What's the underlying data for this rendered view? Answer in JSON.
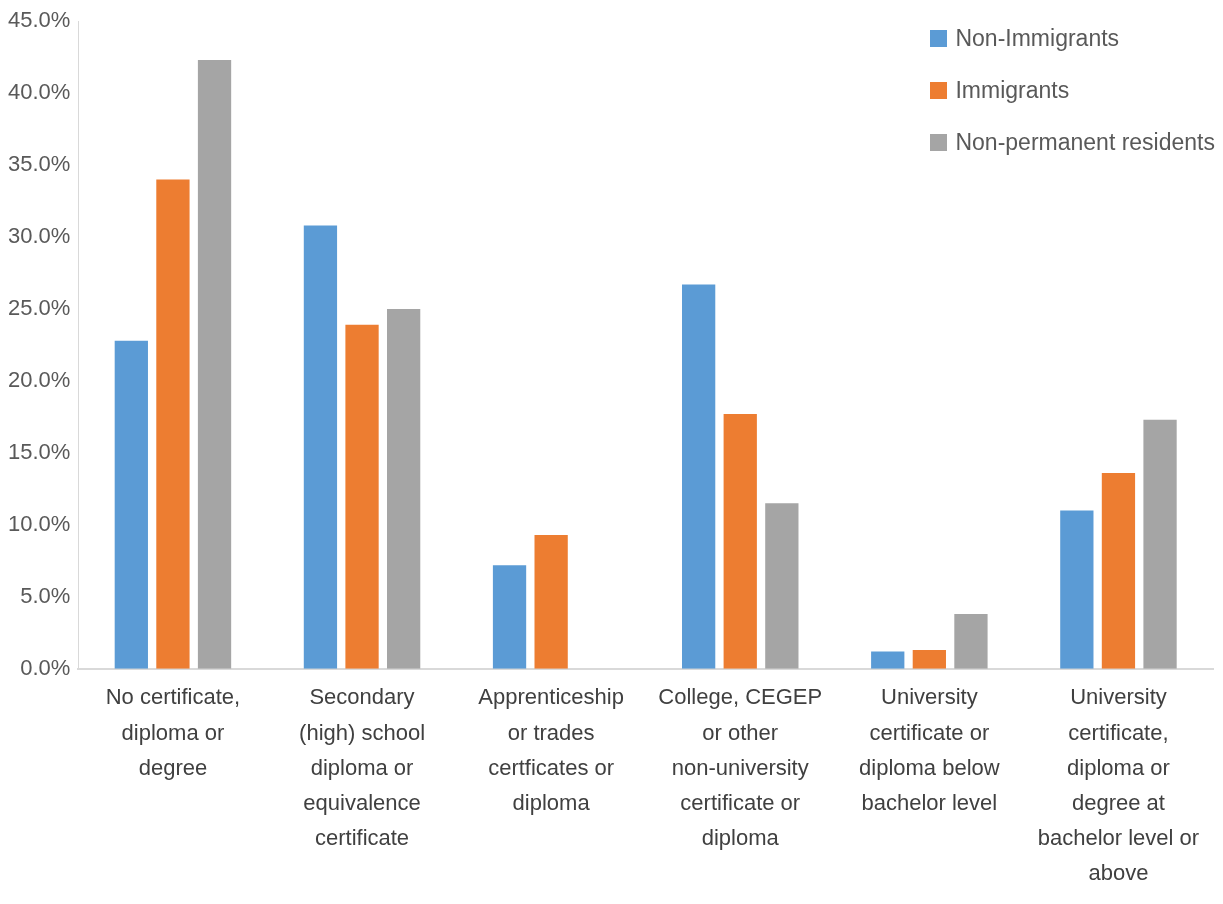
{
  "chart_data": {
    "type": "bar",
    "categories": [
      "No certificate, diploma or degree",
      "Secondary (high) school diploma or equivalence certificate",
      "Apprenticeship or trades certficates or diploma",
      "College, CEGEP or other non-university certificate or diploma",
      "University certificate or diploma below bachelor level",
      "University certificate, diploma or degree at bachelor level or above"
    ],
    "series": [
      {
        "name": "Non-Immigrants",
        "color": "#5b9bd5",
        "values": [
          22.8,
          30.8,
          7.2,
          26.7,
          1.2,
          11.0
        ]
      },
      {
        "name": "Immigrants",
        "color": "#ed7d31",
        "values": [
          34.0,
          23.9,
          9.3,
          17.7,
          1.3,
          13.6
        ]
      },
      {
        "name": "Non-permanent residents",
        "color": "#a5a5a5",
        "values": [
          42.3,
          25.0,
          null,
          11.5,
          3.8,
          17.3
        ]
      }
    ],
    "ylim": [
      0,
      45
    ],
    "yticks": [
      {
        "value": 0,
        "label": "0.0%"
      },
      {
        "value": 5,
        "label": "5.0%"
      },
      {
        "value": 10,
        "label": "10.0%"
      },
      {
        "value": 15,
        "label": "15.0%"
      },
      {
        "value": 20,
        "label": "20.0%"
      },
      {
        "value": 25,
        "label": "25.0%"
      },
      {
        "value": 30,
        "label": "30.0%"
      },
      {
        "value": 35,
        "label": "35.0%"
      },
      {
        "value": 40,
        "label": "40.0%"
      },
      {
        "value": 45,
        "label": "45.0%"
      }
    ],
    "grid": false,
    "legend": "top right"
  }
}
